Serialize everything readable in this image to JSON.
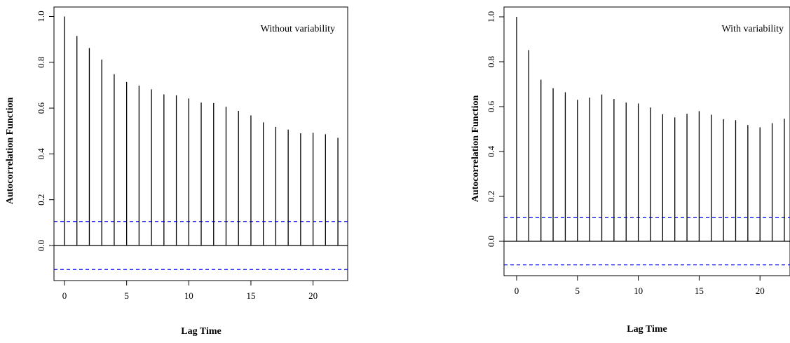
{
  "chart_data": [
    {
      "type": "bar",
      "annotation": "Without variability",
      "title": "",
      "xlabel": "Lag Time",
      "ylabel": "Autocorrelation Function",
      "x": [
        0,
        1,
        2,
        3,
        4,
        5,
        6,
        7,
        8,
        9,
        10,
        11,
        12,
        13,
        14,
        15,
        16,
        17,
        18,
        19,
        20,
        21,
        22
      ],
      "values": [
        1.0,
        0.915,
        0.862,
        0.812,
        0.748,
        0.714,
        0.698,
        0.682,
        0.66,
        0.656,
        0.642,
        0.624,
        0.622,
        0.606,
        0.588,
        0.568,
        0.538,
        0.518,
        0.506,
        0.49,
        0.492,
        0.486,
        0.47
      ],
      "xticks": [
        0,
        5,
        10,
        15,
        20
      ],
      "yticks": [
        0.0,
        0.2,
        0.4,
        0.6,
        0.8,
        1.0
      ],
      "xtick_labels": [
        "0",
        "5",
        "10",
        "15",
        "20"
      ],
      "ytick_labels": [
        "0.0",
        "0.2",
        "0.4",
        "0.6",
        "0.8",
        "1.0"
      ],
      "ylim": [
        -0.15,
        1.02
      ],
      "xlim": [
        -0.5,
        22.5
      ],
      "confidence_band": [
        0.105,
        -0.105
      ],
      "colors": {
        "bars": "#000000",
        "confidence": "#0000ff",
        "zero_line": "#000000"
      },
      "grid": false
    },
    {
      "type": "bar",
      "annotation": "With variability",
      "title": "",
      "xlabel": "Lag Time",
      "ylabel": "Autocorrelation Function",
      "x": [
        0,
        1,
        2,
        3,
        4,
        5,
        6,
        7,
        8,
        9,
        10,
        11,
        12,
        13,
        14,
        15,
        16,
        17,
        18,
        19,
        20,
        21,
        22
      ],
      "values": [
        1.0,
        0.852,
        0.72,
        0.682,
        0.664,
        0.63,
        0.64,
        0.654,
        0.634,
        0.618,
        0.614,
        0.596,
        0.566,
        0.552,
        0.568,
        0.58,
        0.564,
        0.544,
        0.54,
        0.518,
        0.508,
        0.526,
        0.546
      ],
      "xticks": [
        0,
        5,
        10,
        15,
        20
      ],
      "yticks": [
        0.0,
        0.2,
        0.4,
        0.6,
        0.8,
        1.0
      ],
      "xtick_labels": [
        "0",
        "5",
        "10",
        "15",
        "20"
      ],
      "ytick_labels": [
        "0.0",
        "0.2",
        "0.4",
        "0.6",
        "0.8",
        "1.0"
      ],
      "ylim": [
        -0.15,
        1.02
      ],
      "xlim": [
        -0.5,
        22.3
      ],
      "confidence_band": [
        0.105,
        -0.105
      ],
      "colors": {
        "bars": "#000000",
        "confidence": "#0000ff",
        "zero_line": "#000000"
      },
      "grid": false
    }
  ]
}
